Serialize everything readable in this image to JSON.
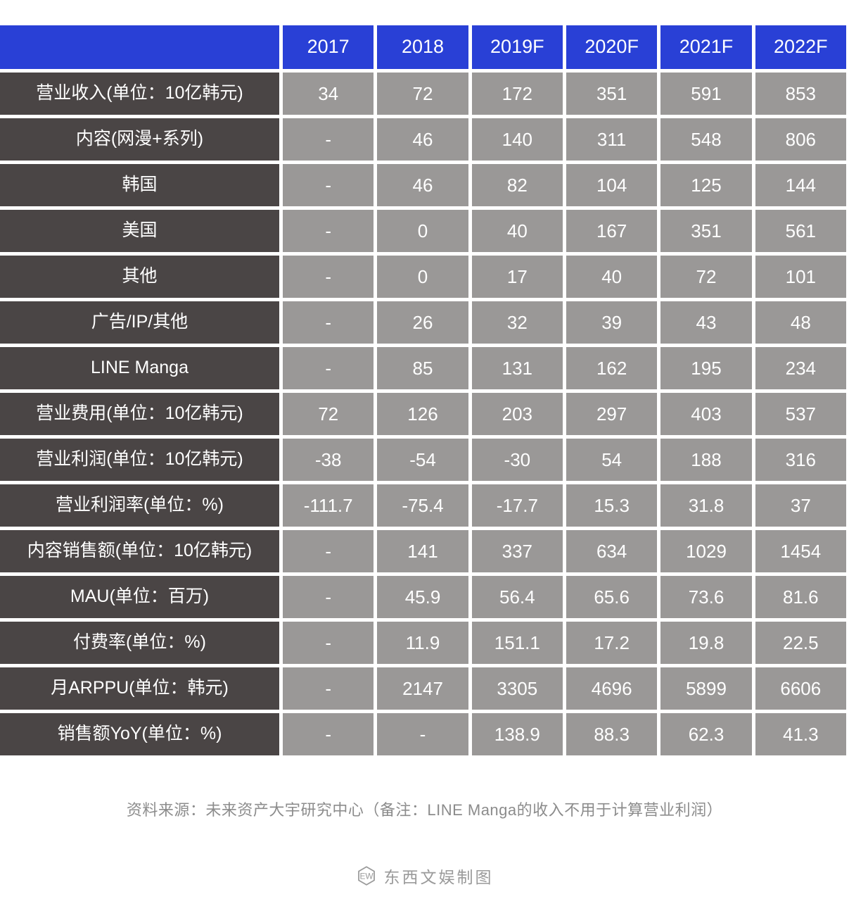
{
  "chart_data": {
    "type": "table",
    "columns": [
      "",
      "2017",
      "2018",
      "2019F",
      "2020F",
      "2021F",
      "2022F"
    ],
    "rows": [
      {
        "label": "营业收入(单位：10亿韩元)",
        "values": [
          "34",
          "72",
          "172",
          "351",
          "591",
          "853"
        ]
      },
      {
        "label": "内容(网漫+系列)",
        "values": [
          "-",
          "46",
          "140",
          "311",
          "548",
          "806"
        ]
      },
      {
        "label": "韩国",
        "values": [
          "-",
          "46",
          "82",
          "104",
          "125",
          "144"
        ]
      },
      {
        "label": "美国",
        "values": [
          "-",
          "0",
          "40",
          "167",
          "351",
          "561"
        ]
      },
      {
        "label": "其他",
        "values": [
          "-",
          "0",
          "17",
          "40",
          "72",
          "101"
        ]
      },
      {
        "label": "广告/IP/其他",
        "values": [
          "-",
          "26",
          "32",
          "39",
          "43",
          "48"
        ]
      },
      {
        "label": "LINE Manga",
        "values": [
          "-",
          "85",
          "131",
          "162",
          "195",
          "234"
        ]
      },
      {
        "label": "营业费用(单位：10亿韩元)",
        "values": [
          "72",
          "126",
          "203",
          "297",
          "403",
          "537"
        ]
      },
      {
        "label": "营业利润(单位：10亿韩元)",
        "values": [
          "-38",
          "-54",
          "-30",
          "54",
          "188",
          "316"
        ]
      },
      {
        "label": "营业利润率(单位：%)",
        "values": [
          "-111.7",
          "-75.4",
          "-17.7",
          "15.3",
          "31.8",
          "37"
        ]
      },
      {
        "label": "内容销售额(单位：10亿韩元)",
        "values": [
          "-",
          "141",
          "337",
          "634",
          "1029",
          "1454"
        ]
      },
      {
        "label": "MAU(单位：百万)",
        "values": [
          "-",
          "45.9",
          "56.4",
          "65.6",
          "73.6",
          "81.6"
        ]
      },
      {
        "label": "付费率(单位：%)",
        "values": [
          "-",
          "11.9",
          "151.1",
          "17.2",
          "19.8",
          "22.5"
        ]
      },
      {
        "label": "月ARPPU(单位：韩元)",
        "values": [
          "-",
          "2147",
          "3305",
          "4696",
          "5899",
          "6606"
        ]
      },
      {
        "label": "销售额YoY(单位：%)",
        "values": [
          "-",
          "-",
          "138.9",
          "88.3",
          "62.3",
          "41.3"
        ]
      }
    ]
  },
  "footer": {
    "source_note": "资料来源：未来资产大宇研究中心（备注：LINE Manga的收入不用于计算营业利润）",
    "credit": "东西文娱制图",
    "logo_text": "EW"
  },
  "colors": {
    "header_bg": "#2940d6",
    "label_bg": "#4a4545",
    "cell_bg": "#9a9897",
    "cell_text": "#ffffff",
    "footer_text": "#8c8c8c",
    "credit_text": "#9a9a9a"
  }
}
